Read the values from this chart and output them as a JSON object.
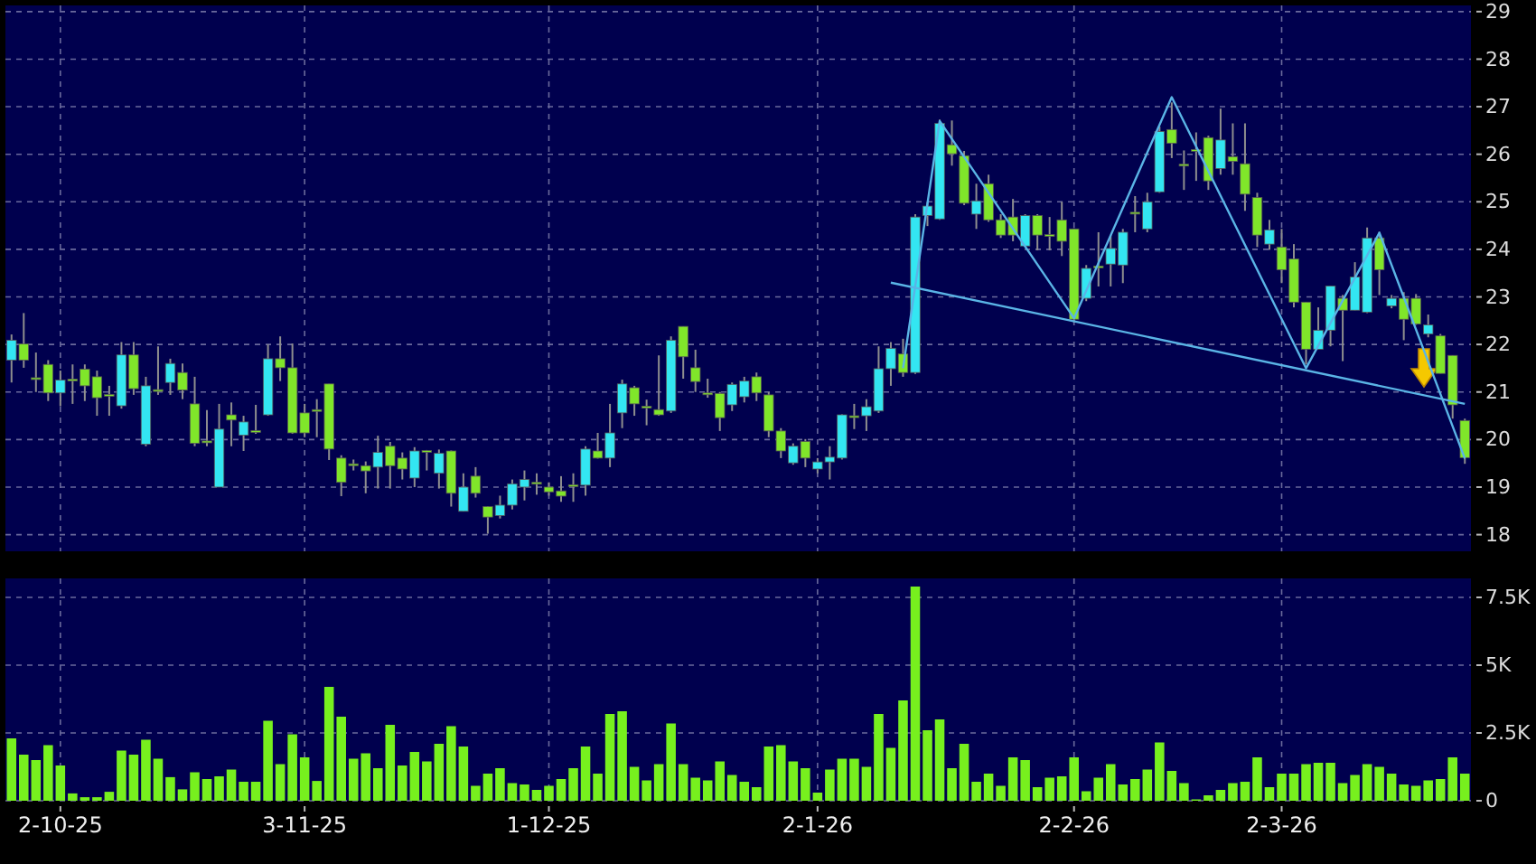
{
  "chart_data": [
    {
      "type": "candlestick",
      "categories": [
        null,
        null,
        null,
        null,
        null,
        null,
        null,
        null,
        null,
        null,
        null,
        null,
        null,
        null,
        null,
        null,
        null,
        null,
        null,
        null,
        null,
        null,
        null,
        null,
        null,
        null,
        null,
        null,
        null,
        null,
        null,
        null,
        null,
        null,
        null,
        null,
        null,
        null,
        null,
        null,
        null,
        null,
        null,
        null,
        null,
        null,
        null,
        null,
        null,
        null,
        null,
        null,
        null,
        null,
        null,
        null,
        null,
        null,
        null,
        null,
        null,
        null,
        null,
        null,
        null,
        null,
        null,
        null,
        null,
        null,
        null,
        null,
        null,
        null,
        null,
        null,
        null,
        null,
        null,
        null,
        null,
        null,
        null,
        null,
        null,
        null,
        null,
        null,
        null,
        null,
        null,
        null,
        null,
        null,
        null,
        null,
        null,
        null,
        null,
        null,
        null,
        null,
        null,
        null,
        null,
        null,
        null,
        null,
        null,
        null,
        null,
        null,
        null,
        null,
        null,
        null,
        null,
        null,
        null,
        null
      ],
      "ohlc": [
        [
          21.67,
          22.21,
          21.2,
          22.09
        ],
        [
          22.01,
          22.66,
          21.51,
          21.67
        ],
        [
          21.3,
          21.83,
          21.0,
          21.28
        ],
        [
          21.58,
          21.67,
          20.81,
          20.98
        ],
        [
          20.98,
          21.45,
          20.7,
          21.25
        ],
        [
          21.27,
          21.58,
          20.75,
          21.25
        ],
        [
          21.48,
          21.58,
          20.81,
          21.13
        ],
        [
          21.32,
          21.45,
          20.5,
          20.88
        ],
        [
          20.95,
          21.13,
          20.5,
          20.94
        ],
        [
          20.71,
          22.05,
          20.65,
          21.78
        ],
        [
          21.78,
          22.05,
          20.94,
          21.07
        ],
        [
          19.9,
          21.32,
          19.86,
          21.13
        ],
        [
          21.05,
          21.96,
          20.94,
          21.03
        ],
        [
          21.2,
          21.7,
          20.94,
          21.6
        ],
        [
          21.41,
          21.6,
          20.85,
          21.04
        ],
        [
          20.75,
          21.32,
          19.86,
          19.92
        ],
        [
          19.97,
          20.62,
          19.86,
          19.96
        ],
        [
          19.0,
          20.75,
          19.0,
          20.22
        ],
        [
          20.52,
          20.78,
          19.86,
          20.41
        ],
        [
          20.09,
          20.5,
          19.76,
          20.37
        ],
        [
          20.19,
          20.73,
          20.12,
          20.18
        ],
        [
          20.52,
          22.0,
          20.5,
          21.7
        ],
        [
          21.7,
          22.17,
          21.23,
          21.51
        ],
        [
          21.51,
          22.02,
          20.12,
          20.14
        ],
        [
          20.56,
          20.75,
          20.05,
          20.14
        ],
        [
          20.63,
          20.85,
          20.05,
          20.62
        ],
        [
          21.17,
          21.17,
          19.57,
          19.8
        ],
        [
          19.61,
          19.67,
          18.81,
          19.1
        ],
        [
          19.49,
          19.58,
          19.35,
          19.48
        ],
        [
          19.45,
          19.54,
          18.87,
          19.34
        ],
        [
          19.42,
          20.08,
          18.97,
          19.73
        ],
        [
          19.86,
          19.95,
          18.97,
          19.45
        ],
        [
          19.61,
          19.73,
          19.16,
          19.38
        ],
        [
          19.19,
          19.84,
          19.0,
          19.76
        ],
        [
          19.77,
          19.78,
          19.35,
          19.76
        ],
        [
          19.29,
          19.79,
          18.97,
          19.71
        ],
        [
          19.76,
          19.77,
          18.59,
          18.87
        ],
        [
          18.49,
          19.29,
          18.49,
          19.0
        ],
        [
          19.23,
          19.42,
          18.78,
          18.87
        ],
        [
          18.59,
          18.6,
          18.02,
          18.37
        ],
        [
          18.4,
          18.82,
          18.34,
          18.62
        ],
        [
          18.62,
          19.16,
          18.53,
          19.07
        ],
        [
          19.0,
          19.35,
          18.72,
          19.16
        ],
        [
          19.1,
          19.29,
          18.84,
          19.09
        ],
        [
          19.0,
          19.1,
          18.82,
          18.9
        ],
        [
          18.92,
          19.23,
          18.69,
          18.81
        ],
        [
          19.05,
          19.29,
          18.69,
          19.04
        ],
        [
          19.04,
          19.86,
          18.82,
          19.8
        ],
        [
          19.76,
          20.14,
          19.6,
          19.61
        ],
        [
          19.61,
          20.75,
          19.42,
          20.14
        ],
        [
          20.56,
          21.26,
          20.24,
          21.17
        ],
        [
          21.09,
          21.13,
          20.5,
          20.75
        ],
        [
          20.7,
          20.84,
          20.3,
          20.69
        ],
        [
          20.63,
          21.77,
          20.5,
          20.52
        ],
        [
          20.6,
          22.17,
          20.56,
          22.09
        ],
        [
          22.38,
          22.38,
          21.28,
          21.74
        ],
        [
          21.51,
          21.89,
          21.0,
          21.22
        ],
        [
          20.98,
          21.28,
          20.88,
          20.97
        ],
        [
          20.97,
          21.0,
          20.18,
          20.46
        ],
        [
          20.73,
          21.2,
          20.6,
          21.16
        ],
        [
          20.9,
          21.32,
          20.78,
          21.23
        ],
        [
          21.32,
          21.41,
          20.81,
          20.98
        ],
        [
          20.94,
          21.0,
          20.05,
          20.18
        ],
        [
          20.18,
          20.24,
          19.61,
          19.76
        ],
        [
          19.51,
          19.92,
          19.47,
          19.86
        ],
        [
          19.96,
          20.01,
          19.42,
          19.61
        ],
        [
          19.38,
          19.61,
          19.29,
          19.53
        ],
        [
          19.53,
          19.86,
          19.16,
          19.63
        ],
        [
          19.61,
          20.53,
          19.58,
          20.52
        ],
        [
          20.5,
          20.75,
          20.22,
          20.49
        ],
        [
          20.5,
          20.85,
          20.18,
          20.69
        ],
        [
          20.6,
          21.96,
          20.56,
          21.49
        ],
        [
          21.49,
          22.05,
          21.13,
          21.92
        ],
        [
          21.8,
          22.12,
          21.32,
          21.41
        ],
        [
          21.41,
          24.74,
          21.38,
          24.68
        ],
        [
          24.71,
          25.0,
          24.49,
          24.91
        ],
        [
          24.64,
          26.73,
          24.62,
          26.65
        ],
        [
          26.2,
          26.71,
          25.76,
          26.01
        ],
        [
          25.97,
          26.07,
          24.93,
          24.97
        ],
        [
          24.74,
          25.38,
          24.43,
          25.02
        ],
        [
          25.38,
          25.57,
          24.58,
          24.62
        ],
        [
          24.62,
          24.74,
          24.24,
          24.3
        ],
        [
          24.68,
          25.06,
          24.17,
          24.3
        ],
        [
          24.07,
          24.74,
          24.05,
          24.71
        ],
        [
          24.71,
          24.74,
          23.98,
          24.3
        ],
        [
          24.31,
          24.68,
          23.98,
          24.3
        ],
        [
          24.62,
          25.0,
          23.86,
          24.17
        ],
        [
          24.43,
          24.44,
          22.46,
          22.53
        ],
        [
          22.97,
          23.67,
          22.91,
          23.6
        ],
        [
          23.65,
          24.36,
          23.22,
          23.64
        ],
        [
          23.69,
          24.3,
          23.22,
          24.02
        ],
        [
          23.67,
          24.43,
          23.29,
          24.36
        ],
        [
          24.78,
          25.12,
          24.36,
          24.77
        ],
        [
          24.43,
          25.19,
          24.36,
          25.0
        ],
        [
          25.21,
          26.58,
          25.19,
          26.48
        ],
        [
          26.52,
          27.09,
          25.92,
          26.23
        ],
        [
          25.79,
          26.08,
          25.25,
          25.78
        ],
        [
          26.1,
          26.46,
          25.44,
          26.08
        ],
        [
          26.35,
          26.39,
          25.25,
          25.44
        ],
        [
          25.7,
          26.96,
          25.57,
          26.3
        ],
        [
          25.95,
          26.65,
          25.57,
          25.85
        ],
        [
          25.8,
          26.65,
          24.81,
          25.16
        ],
        [
          25.09,
          25.19,
          24.05,
          24.3
        ],
        [
          24.11,
          24.62,
          23.99,
          24.41
        ],
        [
          24.05,
          24.43,
          23.29,
          23.57
        ],
        [
          23.8,
          24.11,
          22.78,
          22.89
        ],
        [
          22.89,
          22.89,
          21.58,
          21.9
        ],
        [
          21.9,
          22.78,
          21.9,
          22.3
        ],
        [
          22.3,
          23.23,
          21.96,
          23.23
        ],
        [
          22.97,
          23.04,
          21.65,
          22.72
        ],
        [
          22.72,
          23.73,
          22.72,
          23.42
        ],
        [
          22.68,
          24.46,
          22.66,
          24.24
        ],
        [
          24.24,
          24.37,
          23.04,
          23.57
        ],
        [
          22.81,
          23.04,
          22.76,
          22.97
        ],
        [
          22.97,
          23.1,
          22.09,
          22.53
        ],
        [
          22.97,
          23.06,
          22.41,
          22.43
        ],
        [
          22.22,
          22.63,
          22.15,
          22.41
        ],
        [
          22.18,
          22.22,
          21.39,
          21.39
        ],
        [
          21.77,
          21.77,
          20.44,
          20.73
        ],
        [
          20.4,
          20.44,
          19.49,
          19.62
        ]
      ],
      "colors": [
        "#33e6f2",
        "#80e62a",
        "#80e62a",
        "#80e62a",
        "#33e6f2",
        "#80e62a",
        "#80e62a",
        "#80e62a",
        "#80e62a",
        "#33e6f2",
        "#80e62a",
        "#33e6f2",
        "#80e62a",
        "#33e6f2",
        "#80e62a",
        "#80e62a",
        "#80e62a",
        "#33e6f2",
        "#80e62a",
        "#33e6f2",
        "#80e62a",
        "#33e6f2",
        "#80e62a",
        "#80e62a",
        "#80e62a",
        "#80e62a",
        "#80e62a",
        "#80e62a",
        "#80e62a",
        "#80e62a",
        "#33e6f2",
        "#80e62a",
        "#80e62a",
        "#33e6f2",
        "#80e62a",
        "#33e6f2",
        "#80e62a",
        "#33e6f2",
        "#80e62a",
        "#80e62a",
        "#33e6f2",
        "#33e6f2",
        "#33e6f2",
        "#80e62a",
        "#80e62a",
        "#80e62a",
        "#80e62a",
        "#33e6f2",
        "#80e62a",
        "#33e6f2",
        "#33e6f2",
        "#80e62a",
        "#80e62a",
        "#80e62a",
        "#33e6f2",
        "#80e62a",
        "#80e62a",
        "#80e62a",
        "#80e62a",
        "#33e6f2",
        "#33e6f2",
        "#80e62a",
        "#80e62a",
        "#80e62a",
        "#33e6f2",
        "#80e62a",
        "#33e6f2",
        "#33e6f2",
        "#33e6f2",
        "#80e62a",
        "#33e6f2",
        "#33e6f2",
        "#33e6f2",
        "#80e62a",
        "#33e6f2",
        "#33e6f2",
        "#33e6f2",
        "#80e62a",
        "#80e62a",
        "#33e6f2",
        "#80e62a",
        "#80e62a",
        "#80e62a",
        "#33e6f2",
        "#80e62a",
        "#80e62a",
        "#80e62a",
        "#80e62a",
        "#33e6f2",
        "#80e62a",
        "#33e6f2",
        "#33e6f2",
        "#80e62a",
        "#33e6f2",
        "#33e6f2",
        "#80e62a",
        "#80e62a",
        "#80e62a",
        "#80e62a",
        "#33e6f2",
        "#80e62a",
        "#80e62a",
        "#80e62a",
        "#33e6f2",
        "#80e62a",
        "#80e62a",
        "#80e62a",
        "#33e6f2",
        "#33e6f2",
        "#80e62a",
        "#33e6f2",
        "#33e6f2",
        "#80e62a",
        "#33e6f2",
        "#80e62a",
        "#80e62a",
        "#33e6f2",
        "#80e62a",
        "#80e62a",
        "#80e62a"
      ],
      "series": [
        {
          "type": "line",
          "color": "#5ab4e6",
          "values": [
            null,
            null,
            null,
            null,
            null,
            null,
            null,
            null,
            null,
            null,
            null,
            null,
            null,
            null,
            null,
            null,
            null,
            null,
            null,
            null,
            null,
            null,
            null,
            null,
            null,
            null,
            null,
            null,
            null,
            null,
            null,
            null,
            null,
            null,
            null,
            null,
            null,
            null,
            null,
            null,
            null,
            null,
            null,
            null,
            null,
            null,
            null,
            null,
            null,
            null,
            null,
            null,
            null,
            null,
            null,
            null,
            null,
            null,
            null,
            null,
            null,
            null,
            null,
            null,
            null,
            null,
            null,
            null,
            null,
            null,
            null,
            null,
            null,
            21.5,
            null,
            null,
            26.7,
            null,
            null,
            null,
            null,
            null,
            null,
            null,
            null,
            null,
            null,
            22.55,
            null,
            null,
            null,
            null,
            null,
            null,
            null,
            27.2,
            null,
            null,
            null,
            null,
            null,
            null,
            null,
            null,
            null,
            null,
            21.5,
            null,
            null,
            null,
            null,
            null,
            24.35,
            null,
            null,
            null,
            null,
            null,
            null,
            19.6
          ]
        },
        {
          "type": "line",
          "color": "#5ab4e6",
          "values": [
            null,
            null,
            null,
            null,
            null,
            null,
            null,
            null,
            null,
            null,
            null,
            null,
            null,
            null,
            null,
            null,
            null,
            null,
            null,
            null,
            null,
            null,
            null,
            null,
            null,
            null,
            null,
            null,
            null,
            null,
            null,
            null,
            null,
            null,
            null,
            null,
            null,
            null,
            null,
            null,
            null,
            null,
            null,
            null,
            null,
            null,
            null,
            null,
            null,
            null,
            null,
            null,
            null,
            null,
            null,
            null,
            null,
            null,
            null,
            null,
            null,
            null,
            null,
            null,
            null,
            null,
            null,
            null,
            null,
            null,
            null,
            null,
            23.3,
            null,
            null,
            null,
            null,
            null,
            null,
            null,
            null,
            null,
            null,
            null,
            null,
            null,
            null,
            null,
            null,
            null,
            null,
            null,
            null,
            null,
            null,
            null,
            null,
            null,
            null,
            null,
            null,
            null,
            null,
            null,
            null,
            null,
            null,
            null,
            null,
            null,
            null,
            null,
            null,
            null,
            null,
            null,
            null,
            null,
            null,
            20.75
          ]
        }
      ],
      "ylim": [
        17.65,
        29.13
      ],
      "yticks": [
        18,
        19,
        20,
        21,
        22,
        23,
        24,
        25,
        26,
        27,
        28,
        29
      ],
      "grid": true,
      "tick_labels": "y"
    },
    {
      "type": "bar",
      "categories": [
        null,
        null,
        null,
        null,
        "2-10-25",
        null,
        null,
        null,
        null,
        null,
        null,
        null,
        null,
        null,
        null,
        null,
        null,
        null,
        null,
        null,
        null,
        null,
        null,
        null,
        "3-11-25",
        null,
        null,
        null,
        null,
        null,
        null,
        null,
        null,
        null,
        null,
        null,
        null,
        null,
        null,
        null,
        null,
        null,
        null,
        null,
        "1-12-25",
        null,
        null,
        null,
        null,
        null,
        null,
        null,
        null,
        null,
        null,
        null,
        null,
        null,
        null,
        null,
        null,
        null,
        null,
        null,
        null,
        null,
        "2-1-26",
        null,
        null,
        null,
        null,
        null,
        null,
        null,
        null,
        null,
        null,
        null,
        null,
        null,
        null,
        null,
        null,
        null,
        null,
        null,
        null,
        "2-2-26",
        null,
        null,
        null,
        null,
        null,
        null,
        null,
        null,
        null,
        null,
        null,
        null,
        null,
        null,
        null,
        null,
        "2-3-26",
        null,
        null,
        null,
        null,
        null,
        null,
        null,
        null,
        null,
        null,
        null,
        null,
        null,
        null,
        null
      ],
      "values": [
        2300,
        1700,
        1500,
        2050,
        1300,
        270,
        130,
        130,
        330,
        1850,
        1700,
        2250,
        1550,
        870,
        420,
        1050,
        800,
        900,
        1150,
        700,
        700,
        2950,
        1350,
        2450,
        1600,
        730,
        4200,
        3100,
        1550,
        1750,
        1200,
        2800,
        1300,
        1800,
        1450,
        2100,
        2750,
        2000,
        550,
        1000,
        1200,
        650,
        600,
        400,
        550,
        800,
        1200,
        2000,
        1000,
        3200,
        3300,
        1250,
        750,
        1350,
        2850,
        1350,
        850,
        750,
        1450,
        950,
        700,
        500,
        2000,
        2050,
        1450,
        1200,
        300,
        1150,
        1550,
        1550,
        1250,
        3200,
        1950,
        3700,
        7900,
        2600,
        3000,
        1200,
        2100,
        700,
        1000,
        550,
        1600,
        1500,
        500,
        850,
        900,
        1600,
        350,
        850,
        1350,
        600,
        800,
        1150,
        2150,
        1100,
        650,
        50,
        200,
        400,
        650,
        700,
        1600,
        500,
        1000,
        1000,
        1350,
        1400,
        1400,
        650,
        950,
        1350,
        1250,
        1000,
        600,
        550,
        750,
        800,
        1600,
        1000
      ],
      "color": "#77f01e",
      "ylim": [
        0,
        8200
      ],
      "yticks": [
        0,
        {
          "value": 2500,
          "label": "2.5K"
        },
        {
          "value": 5000,
          "label": "5K"
        },
        {
          "value": 7500,
          "label": "7.5K"
        }
      ],
      "grid": true
    }
  ]
}
